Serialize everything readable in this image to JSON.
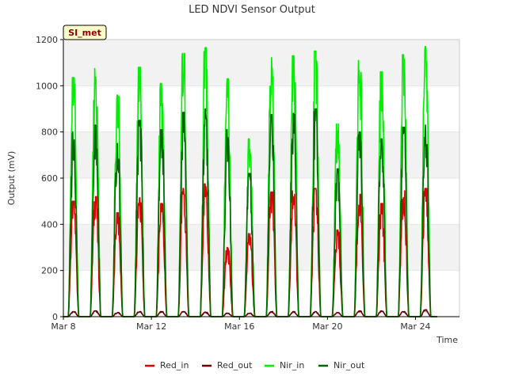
{
  "chart_data": {
    "type": "line",
    "title": "LED NDVI Sensor Output",
    "xlabel": "Time",
    "ylabel": "Output (mV)",
    "site_badge": "SI_met",
    "x_domain": [
      "2024-03-08",
      "2024-03-26"
    ],
    "xticks": [
      {
        "date": "2024-03-08",
        "label": "Mar 8"
      },
      {
        "date": "2024-03-12",
        "label": "Mar 12"
      },
      {
        "date": "2024-03-16",
        "label": "Mar 16"
      },
      {
        "date": "2024-03-20",
        "label": "Mar 20"
      },
      {
        "date": "2024-03-24",
        "label": "Mar 24"
      }
    ],
    "ylim": [
      0,
      1200
    ],
    "yticks": [
      0,
      200,
      400,
      600,
      800,
      1000,
      1200
    ],
    "grid": "horizontal bands",
    "legend_position": "bottom",
    "series": [
      {
        "name": "Red_in",
        "color": "#dd0000",
        "daily_peaks": [
          {
            "date": "2024-03-08",
            "peak": 500
          },
          {
            "date": "2024-03-09",
            "peak": 520
          },
          {
            "date": "2024-03-10",
            "peak": 450
          },
          {
            "date": "2024-03-11",
            "peak": 515
          },
          {
            "date": "2024-03-12",
            "peak": 490
          },
          {
            "date": "2024-03-13",
            "peak": 555
          },
          {
            "date": "2024-03-14",
            "peak": 575
          },
          {
            "date": "2024-03-15",
            "peak": 300
          },
          {
            "date": "2024-03-16",
            "peak": 360
          },
          {
            "date": "2024-03-17",
            "peak": 540
          },
          {
            "date": "2024-03-18",
            "peak": 545
          },
          {
            "date": "2024-03-19",
            "peak": 555
          },
          {
            "date": "2024-03-20",
            "peak": 375
          },
          {
            "date": "2024-03-21",
            "peak": 530
          },
          {
            "date": "2024-03-22",
            "peak": 490
          },
          {
            "date": "2024-03-23",
            "peak": 545
          },
          {
            "date": "2024-03-24",
            "peak": 555
          }
        ]
      },
      {
        "name": "Red_out",
        "color": "#660000",
        "daily_peaks": [
          {
            "date": "2024-03-08",
            "peak": 22
          },
          {
            "date": "2024-03-09",
            "peak": 25
          },
          {
            "date": "2024-03-10",
            "peak": 18
          },
          {
            "date": "2024-03-11",
            "peak": 22
          },
          {
            "date": "2024-03-12",
            "peak": 22
          },
          {
            "date": "2024-03-13",
            "peak": 22
          },
          {
            "date": "2024-03-14",
            "peak": 20
          },
          {
            "date": "2024-03-15",
            "peak": 15
          },
          {
            "date": "2024-03-16",
            "peak": 15
          },
          {
            "date": "2024-03-17",
            "peak": 22
          },
          {
            "date": "2024-03-18",
            "peak": 22
          },
          {
            "date": "2024-03-19",
            "peak": 22
          },
          {
            "date": "2024-03-20",
            "peak": 18
          },
          {
            "date": "2024-03-21",
            "peak": 25
          },
          {
            "date": "2024-03-22",
            "peak": 25
          },
          {
            "date": "2024-03-23",
            "peak": 22
          },
          {
            "date": "2024-03-24",
            "peak": 30
          }
        ]
      },
      {
        "name": "Nir_in",
        "color": "#00ee00",
        "daily_peaks": [
          {
            "date": "2024-03-08",
            "peak": 1035
          },
          {
            "date": "2024-03-09",
            "peak": 1075
          },
          {
            "date": "2024-03-10",
            "peak": 960
          },
          {
            "date": "2024-03-11",
            "peak": 1080
          },
          {
            "date": "2024-03-12",
            "peak": 1010
          },
          {
            "date": "2024-03-13",
            "peak": 1140
          },
          {
            "date": "2024-03-14",
            "peak": 1165
          },
          {
            "date": "2024-03-15",
            "peak": 1030
          },
          {
            "date": "2024-03-16",
            "peak": 770
          },
          {
            "date": "2024-03-17",
            "peak": 1145
          },
          {
            "date": "2024-03-18",
            "peak": 1130
          },
          {
            "date": "2024-03-19",
            "peak": 1150
          },
          {
            "date": "2024-03-20",
            "peak": 835
          },
          {
            "date": "2024-03-21",
            "peak": 1110
          },
          {
            "date": "2024-03-22",
            "peak": 1060
          },
          {
            "date": "2024-03-23",
            "peak": 1135
          },
          {
            "date": "2024-03-24",
            "peak": 1170
          }
        ]
      },
      {
        "name": "Nir_out",
        "color": "#006600",
        "daily_peaks": [
          {
            "date": "2024-03-08",
            "peak": 800
          },
          {
            "date": "2024-03-09",
            "peak": 830
          },
          {
            "date": "2024-03-10",
            "peak": 750
          },
          {
            "date": "2024-03-11",
            "peak": 850
          },
          {
            "date": "2024-03-12",
            "peak": 810
          },
          {
            "date": "2024-03-13",
            "peak": 885
          },
          {
            "date": "2024-03-14",
            "peak": 900
          },
          {
            "date": "2024-03-15",
            "peak": 810
          },
          {
            "date": "2024-03-16",
            "peak": 620
          },
          {
            "date": "2024-03-17",
            "peak": 875
          },
          {
            "date": "2024-03-18",
            "peak": 880
          },
          {
            "date": "2024-03-19",
            "peak": 900
          },
          {
            "date": "2024-03-20",
            "peak": 640
          },
          {
            "date": "2024-03-21",
            "peak": 800
          },
          {
            "date": "2024-03-22",
            "peak": 770
          },
          {
            "date": "2024-03-23",
            "peak": 820
          },
          {
            "date": "2024-03-24",
            "peak": 830
          }
        ]
      }
    ]
  }
}
